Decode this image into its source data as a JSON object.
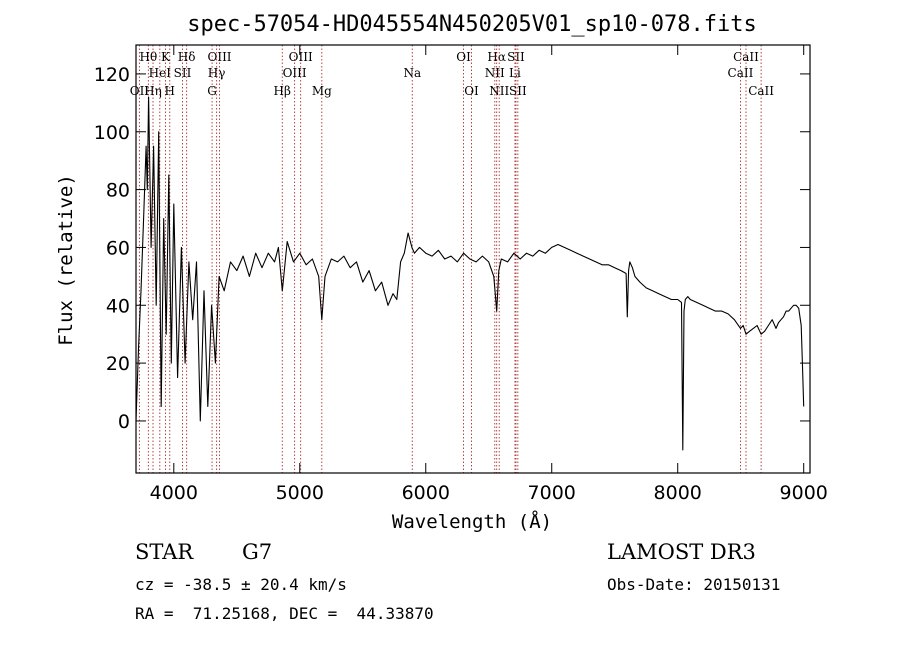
{
  "chart_data": {
    "type": "line",
    "title": "spec-57054-HD045554N450205V01_sp10-078.fits",
    "xlabel": "Wavelength (Å)",
    "ylabel": "Flux (relative)",
    "xlim": [
      3700,
      9050
    ],
    "ylim": [
      -18,
      130
    ],
    "xticks": [
      4000,
      5000,
      6000,
      7000,
      8000,
      9000
    ],
    "yticks": [
      0,
      20,
      40,
      60,
      80,
      100,
      120
    ],
    "series": [
      {
        "name": "flux",
        "x": [
          3700,
          3720,
          3740,
          3760,
          3780,
          3790,
          3800,
          3820,
          3840,
          3860,
          3880,
          3900,
          3920,
          3940,
          3960,
          3980,
          4000,
          4030,
          4060,
          4090,
          4120,
          4150,
          4180,
          4210,
          4240,
          4270,
          4300,
          4330,
          4360,
          4400,
          4450,
          4500,
          4550,
          4600,
          4650,
          4700,
          4750,
          4800,
          4830,
          4861,
          4900,
          4950,
          5000,
          5050,
          5100,
          5150,
          5175,
          5200,
          5250,
          5300,
          5350,
          5400,
          5450,
          5500,
          5550,
          5600,
          5650,
          5700,
          5740,
          5770,
          5800,
          5830,
          5860,
          5890,
          5910,
          5950,
          6000,
          6050,
          6100,
          6150,
          6200,
          6250,
          6300,
          6350,
          6400,
          6450,
          6500,
          6540,
          6563,
          6580,
          6600,
          6650,
          6700,
          6750,
          6800,
          6850,
          6900,
          6950,
          7000,
          7050,
          7100,
          7150,
          7200,
          7250,
          7300,
          7350,
          7400,
          7450,
          7500,
          7550,
          7590,
          7600,
          7610,
          7620,
          7640,
          7660,
          7700,
          7750,
          7800,
          7850,
          7900,
          7950,
          8000,
          8030,
          8040,
          8050,
          8060,
          8080,
          8100,
          8150,
          8200,
          8250,
          8300,
          8350,
          8400,
          8450,
          8498,
          8520,
          8542,
          8570,
          8600,
          8630,
          8662,
          8690,
          8720,
          8750,
          8780,
          8800,
          8820,
          8840,
          8860,
          8880,
          8900,
          8920,
          8940,
          8960,
          8980,
          8990,
          9000
        ],
        "y": [
          0,
          25,
          45,
          70,
          95,
          80,
          112,
          60,
          95,
          40,
          100,
          5,
          70,
          30,
          85,
          20,
          75,
          15,
          60,
          20,
          55,
          35,
          55,
          0,
          45,
          5,
          40,
          20,
          50,
          45,
          55,
          52,
          57,
          50,
          58,
          53,
          58,
          55,
          60,
          45,
          62,
          55,
          58,
          54,
          56,
          50,
          35,
          50,
          56,
          55,
          57,
          53,
          55,
          48,
          52,
          45,
          48,
          40,
          44,
          42,
          55,
          58,
          65,
          60,
          58,
          60,
          58,
          57,
          59,
          56,
          57,
          55,
          58,
          56,
          55,
          57,
          55,
          50,
          38,
          52,
          56,
          55,
          58,
          56,
          58,
          57,
          59,
          58,
          60,
          61,
          60,
          59,
          58,
          57,
          56,
          55,
          54,
          54,
          53,
          52,
          51,
          36,
          52,
          55,
          53,
          50,
          48,
          46,
          45,
          44,
          43,
          42,
          42,
          41,
          -10,
          38,
          42,
          43,
          42,
          41,
          40,
          39,
          38,
          38,
          37,
          35,
          32,
          33,
          30,
          31,
          32,
          33,
          30,
          31,
          33,
          35,
          32,
          34,
          35,
          36,
          38,
          38,
          39,
          40,
          40,
          39,
          33,
          20,
          5
        ]
      }
    ],
    "line_markers": [
      {
        "label": "OII",
        "wavelength": 3727,
        "row": 3
      },
      {
        "label": "Hθ",
        "wavelength": 3798,
        "row": 1
      },
      {
        "label": "Hη",
        "wavelength": 3835,
        "row": 3
      },
      {
        "label": "HeI",
        "wavelength": 3889,
        "row": 2
      },
      {
        "label": "K",
        "wavelength": 3934,
        "row": 1
      },
      {
        "label": "SII",
        "wavelength": 4069,
        "row": 2
      },
      {
        "label": "H",
        "wavelength": 3968,
        "row": 3
      },
      {
        "label": "Hδ",
        "wavelength": 4102,
        "row": 1
      },
      {
        "label": "OIII",
        "wavelength": 4363,
        "row": 1
      },
      {
        "label": "Hγ",
        "wavelength": 4340,
        "row": 2
      },
      {
        "label": "G",
        "wavelength": 4304,
        "row": 3
      },
      {
        "label": "Hβ",
        "wavelength": 4861,
        "row": 3
      },
      {
        "label": "OIII",
        "wavelength": 5007,
        "row": 1
      },
      {
        "label": "OIII",
        "wavelength": 4959,
        "row": 2
      },
      {
        "label": "Mg",
        "wavelength": 5175,
        "row": 3
      },
      {
        "label": "Na",
        "wavelength": 5893,
        "row": 2
      },
      {
        "label": "OI",
        "wavelength": 6300,
        "row": 1
      },
      {
        "label": "OI",
        "wavelength": 6363,
        "row": 3
      },
      {
        "label": "Hα",
        "wavelength": 6563,
        "row": 1
      },
      {
        "label": "NII",
        "wavelength": 6548,
        "row": 2
      },
      {
        "label": "NII",
        "wavelength": 6583,
        "row": 3
      },
      {
        "label": "SII",
        "wavelength": 6716,
        "row": 1
      },
      {
        "label": "Li",
        "wavelength": 6708,
        "row": 2
      },
      {
        "label": "SII",
        "wavelength": 6731,
        "row": 3
      },
      {
        "label": "CaII",
        "wavelength": 8542,
        "row": 1
      },
      {
        "label": "CaII",
        "wavelength": 8498,
        "row": 2
      },
      {
        "label": "CaII",
        "wavelength": 8662,
        "row": 3
      }
    ],
    "marker_color": "#b03030",
    "line_color": "#000000"
  },
  "footer": {
    "object_class": "STAR",
    "subclass": "G7",
    "survey": "LAMOST DR3",
    "redshift": "cz = -38.5 ± 20.4 km/s",
    "obs_date": "Obs-Date: 20150131",
    "coords": "RA =  71.25168, DEC =  44.33870"
  }
}
